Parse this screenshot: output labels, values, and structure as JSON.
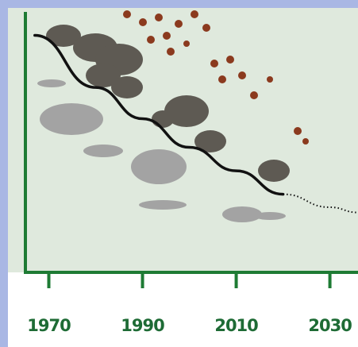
{
  "chart_data": {
    "type": "line",
    "x": [
      1967,
      1980,
      1990,
      2000,
      2010,
      2020,
      2030,
      2036
    ],
    "series": [
      {
        "color": "#111111",
        "style": "solid",
        "values": [
          91,
          71,
          59,
          48,
          39,
          30,
          null,
          null
        ]
      },
      {
        "color": "#111111",
        "style": "dotted",
        "values": [
          null,
          null,
          null,
          null,
          null,
          30,
          25,
          23
        ]
      }
    ],
    "xlim": [
      1965,
      2036
    ],
    "xticks": [
      1970,
      1990,
      2010,
      2030
    ],
    "ylim": [
      0,
      100
    ],
    "axis_color": "#1e7b34"
  }
}
